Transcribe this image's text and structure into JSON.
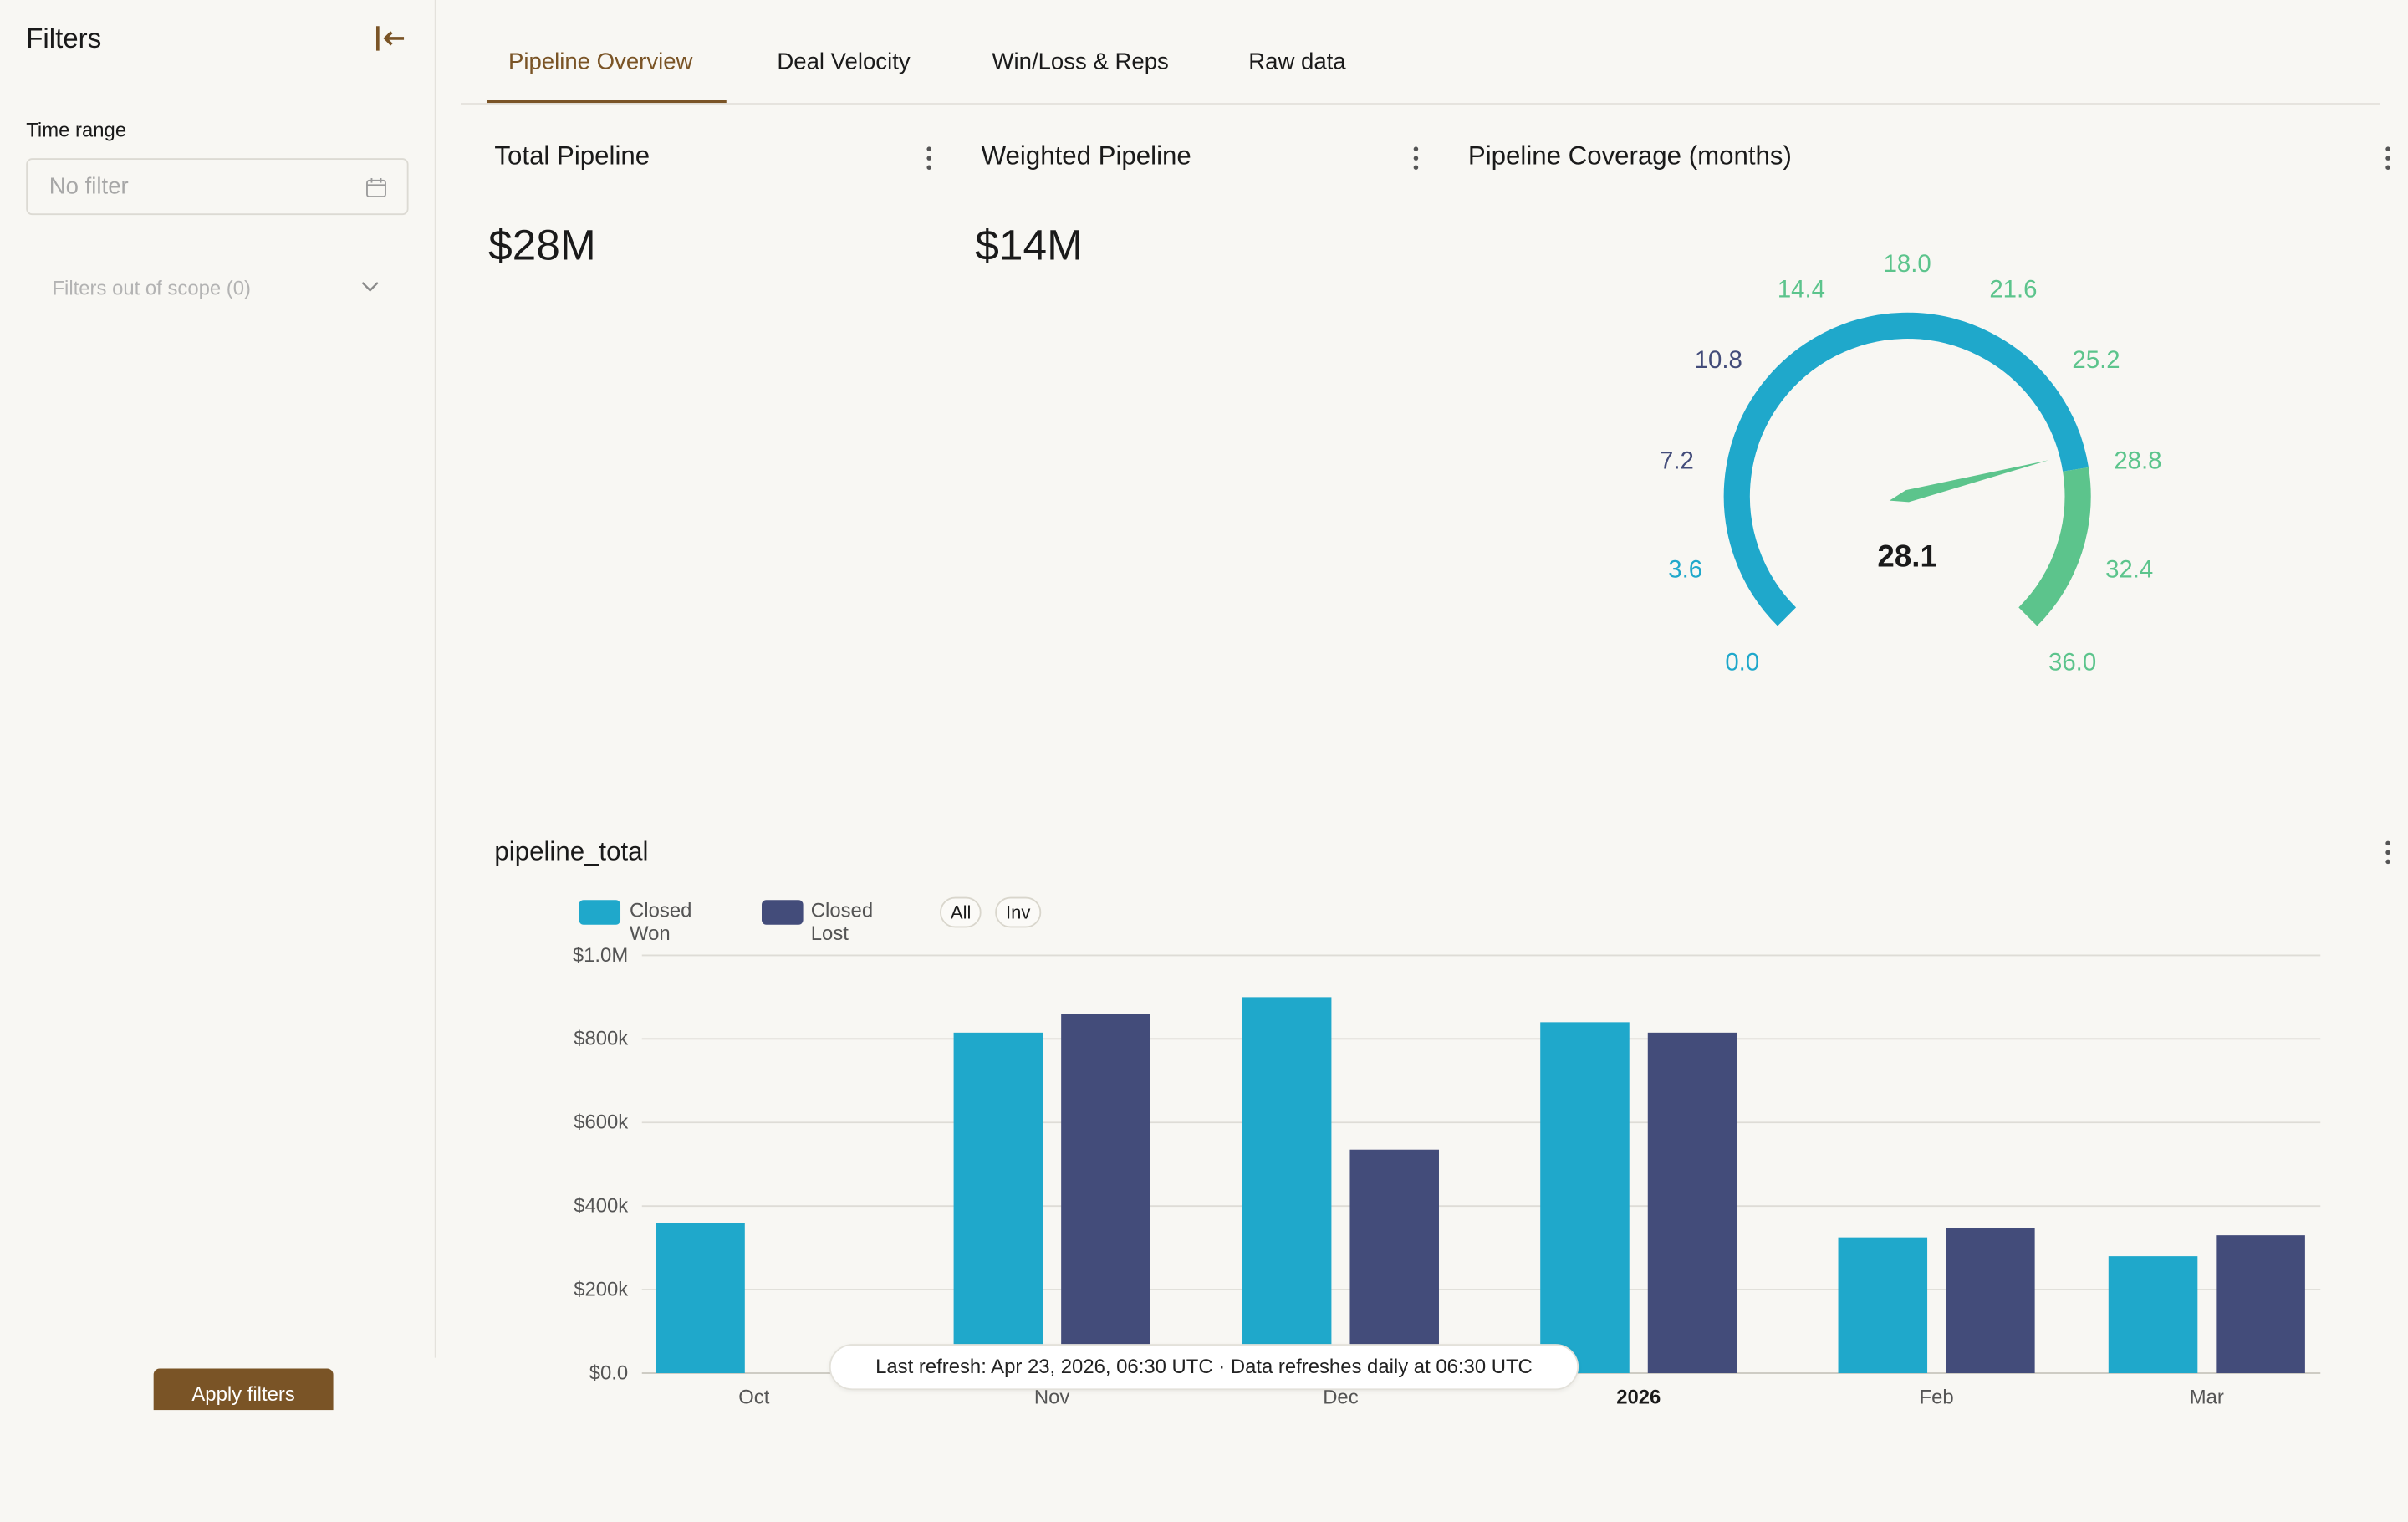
{
  "sidebar": {
    "title": "Filters",
    "time_range_label": "Time range",
    "time_range_placeholder": "No filter",
    "out_of_scope": "Filters out of scope (0)",
    "apply_label": "Apply filters"
  },
  "tabs": [
    {
      "label": "Pipeline Overview",
      "active": true
    },
    {
      "label": "Deal Velocity",
      "active": false
    },
    {
      "label": "Win/Loss & Reps",
      "active": false
    },
    {
      "label": "Raw data",
      "active": false
    }
  ],
  "cards": {
    "total_pipeline": {
      "title": "Total Pipeline",
      "value": "$28M"
    },
    "weighted_pipeline": {
      "title": "Weighted Pipeline",
      "value": "$14M"
    },
    "coverage": {
      "title": "Pipeline Coverage (months)"
    }
  },
  "colors": {
    "accent": "#7a5426",
    "won": "#1fa8cb",
    "lost": "#434c7a",
    "gauge_green": "#5cc48c",
    "grid": "#dedcd6"
  },
  "gauge": {
    "value": 28.1,
    "value_label": "28.1",
    "min": 0,
    "max": 36,
    "threshold": 28.8,
    "ticks": [
      "0.0",
      "3.6",
      "7.2",
      "10.8",
      "14.4",
      "18.0",
      "21.6",
      "25.2",
      "28.8",
      "32.4",
      "36.0"
    ]
  },
  "bar_chart": {
    "title": "pipeline_total",
    "legend_buttons": [
      "All",
      "Inv"
    ],
    "refresh_note": "Last refresh: Apr 23, 2026, 06:30 UTC · Data refreshes daily at 06:30 UTC"
  },
  "chart_data": [
    {
      "type": "gauge",
      "title": "Pipeline Coverage (months)",
      "value": 28.1,
      "range": [
        0,
        36
      ],
      "bands": [
        {
          "from": 0,
          "to": 28.8,
          "color": "#1fa8cb"
        },
        {
          "from": 28.8,
          "to": 36,
          "color": "#5cc48c"
        }
      ]
    },
    {
      "type": "bar",
      "title": "pipeline_total",
      "categories": [
        "Oct",
        "Nov",
        "Dec",
        "2026",
        "Feb",
        "Mar"
      ],
      "series": [
        {
          "name": "Closed Won",
          "color": "#1fa8cb",
          "values": [
            360000,
            815000,
            900000,
            840000,
            325000,
            280000
          ]
        },
        {
          "name": "Closed Lost",
          "color": "#434c7a",
          "values": [
            0,
            860000,
            535000,
            815000,
            348000,
            330000
          ]
        }
      ],
      "yticks": [
        "$0.0",
        "$200k",
        "$400k",
        "$600k",
        "$800k",
        "$1.0M"
      ],
      "ylim": [
        0,
        1000000
      ],
      "legend": "top-left",
      "grid": true
    }
  ]
}
